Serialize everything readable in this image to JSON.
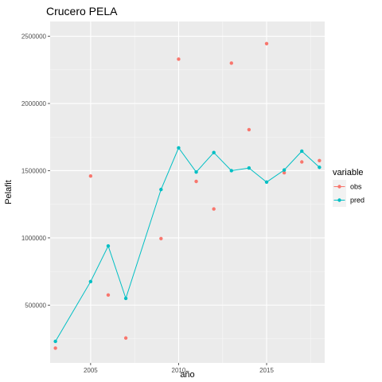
{
  "chart_data": {
    "type": "scatter",
    "title": "Crucero PELA",
    "xlabel": "año",
    "ylabel": "Pelafit",
    "xlim": [
      2002.7,
      2018.3
    ],
    "ylim": [
      70000,
      2610000
    ],
    "x_ticks": [
      2005,
      2010,
      2015
    ],
    "y_ticks": [
      500000,
      1000000,
      1500000,
      2000000,
      2500000
    ],
    "x_tick_labels": [
      "2005",
      "2010",
      "2015"
    ],
    "y_tick_labels": [
      "500000",
      "1000000",
      "1500000",
      "2000000",
      "2500000"
    ],
    "grid": true,
    "legend": {
      "title": "variable",
      "position": "right"
    },
    "series": [
      {
        "name": "obs",
        "color": "#F8766D",
        "line": false,
        "points": [
          {
            "x": 2003,
            "y": 180000
          },
          {
            "x": 2005,
            "y": 1460000
          },
          {
            "x": 2006,
            "y": 575000
          },
          {
            "x": 2007,
            "y": 255000
          },
          {
            "x": 2009,
            "y": 995000
          },
          {
            "x": 2010,
            "y": 2330000
          },
          {
            "x": 2011,
            "y": 1420000
          },
          {
            "x": 2012,
            "y": 1215000
          },
          {
            "x": 2013,
            "y": 2300000
          },
          {
            "x": 2014,
            "y": 1805000
          },
          {
            "x": 2015,
            "y": 2445000
          },
          {
            "x": 2016,
            "y": 1485000
          },
          {
            "x": 2017,
            "y": 1565000
          },
          {
            "x": 2018,
            "y": 1575000
          }
        ]
      },
      {
        "name": "pred",
        "color": "#00BFC4",
        "line": true,
        "points": [
          {
            "x": 2003,
            "y": 230000
          },
          {
            "x": 2005,
            "y": 675000
          },
          {
            "x": 2006,
            "y": 940000
          },
          {
            "x": 2007,
            "y": 550000
          },
          {
            "x": 2009,
            "y": 1360000
          },
          {
            "x": 2010,
            "y": 1670000
          },
          {
            "x": 2011,
            "y": 1490000
          },
          {
            "x": 2012,
            "y": 1635000
          },
          {
            "x": 2013,
            "y": 1500000
          },
          {
            "x": 2014,
            "y": 1520000
          },
          {
            "x": 2015,
            "y": 1415000
          },
          {
            "x": 2016,
            "y": 1505000
          },
          {
            "x": 2017,
            "y": 1645000
          },
          {
            "x": 2018,
            "y": 1525000
          }
        ]
      }
    ]
  }
}
